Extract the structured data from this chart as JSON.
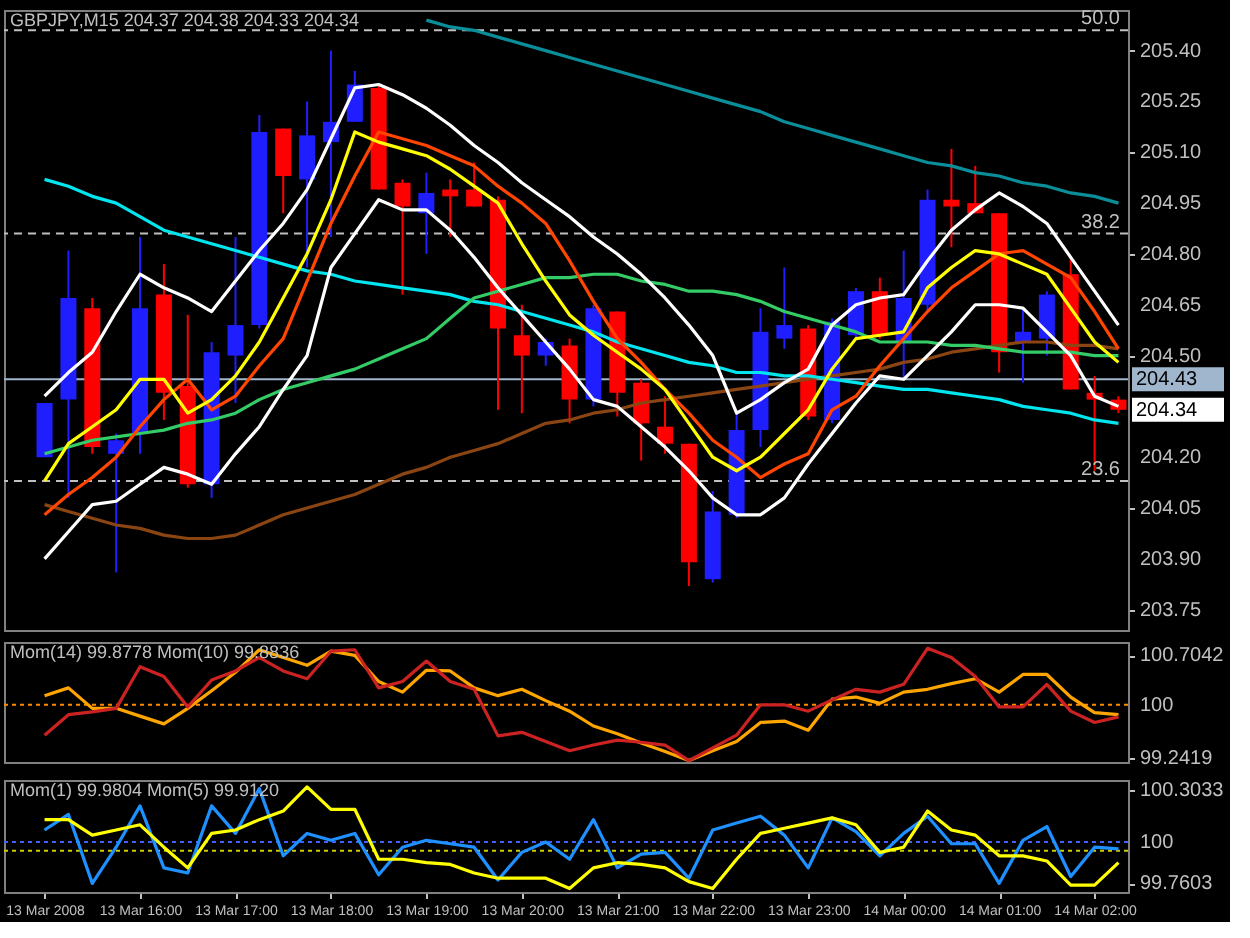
{
  "chart_data": [
    {
      "type": "candlestick",
      "title": "GBPJPY,M15  204.37 204.38 204.33 204.34",
      "categories": [
        null,
        null,
        null,
        null,
        null,
        null,
        null,
        null,
        null,
        null,
        null,
        null,
        null,
        null,
        null,
        null,
        null,
        null,
        null,
        null,
        null,
        null,
        null,
        null,
        null,
        null,
        null,
        null,
        null,
        null,
        null,
        null,
        null,
        null,
        null,
        null,
        null,
        null,
        null,
        null,
        null,
        null,
        null,
        null,
        null,
        null
      ],
      "ohlc": [
        [
          204.2,
          204.36,
          204.2,
          204.36
        ],
        [
          204.37,
          204.81,
          204.08,
          204.67
        ],
        [
          204.64,
          204.67,
          204.21,
          204.23
        ],
        [
          204.21,
          204.27,
          203.86,
          204.25
        ],
        [
          204.27,
          204.85,
          204.21,
          204.64
        ],
        [
          204.68,
          204.77,
          204.31,
          204.39
        ],
        [
          204.41,
          204.62,
          204.11,
          204.12
        ],
        [
          204.12,
          204.54,
          204.08,
          204.51
        ],
        [
          204.5,
          204.85,
          204.36,
          204.59
        ],
        [
          204.59,
          205.21,
          204.58,
          205.16
        ],
        [
          205.17,
          205.17,
          204.92,
          205.03
        ],
        [
          205.02,
          205.25,
          204.76,
          205.15
        ],
        [
          205.13,
          205.4,
          204.85,
          205.19
        ],
        [
          205.19,
          205.34,
          205.19,
          205.3
        ],
        [
          205.29,
          205.3,
          204.99,
          204.99
        ],
        [
          205.01,
          205.02,
          204.68,
          204.94
        ],
        [
          204.92,
          205.04,
          204.8,
          204.98
        ],
        [
          204.99,
          205.02,
          204.85,
          204.97
        ],
        [
          204.99,
          205.07,
          204.94,
          204.94
        ],
        [
          204.96,
          204.97,
          204.34,
          204.58
        ],
        [
          204.56,
          204.65,
          204.33,
          204.5
        ],
        [
          204.5,
          204.55,
          204.47,
          204.54
        ],
        [
          204.53,
          204.55,
          204.3,
          204.37
        ],
        [
          204.37,
          204.65,
          204.35,
          204.64
        ],
        [
          204.63,
          204.63,
          204.32,
          204.39
        ],
        [
          204.42,
          204.43,
          204.19,
          204.3
        ],
        [
          204.29,
          204.38,
          204.21,
          204.24
        ],
        [
          204.24,
          204.24,
          203.82,
          203.89
        ],
        [
          203.84,
          204.1,
          203.83,
          204.04
        ],
        [
          204.03,
          204.34,
          204.02,
          204.28
        ],
        [
          204.28,
          204.64,
          204.23,
          204.57
        ],
        [
          204.55,
          204.76,
          204.52,
          204.59
        ],
        [
          204.58,
          204.59,
          204.31,
          204.32
        ],
        [
          204.31,
          204.61,
          204.3,
          204.6
        ],
        [
          204.56,
          204.7,
          204.55,
          204.69
        ],
        [
          204.69,
          204.73,
          204.55,
          204.56
        ],
        [
          204.54,
          204.81,
          204.43,
          204.67
        ],
        [
          204.65,
          204.99,
          204.63,
          204.96
        ],
        [
          204.96,
          205.11,
          204.82,
          204.94
        ],
        [
          204.95,
          205.06,
          204.92,
          204.92
        ],
        [
          204.92,
          204.92,
          204.45,
          204.51
        ],
        [
          204.54,
          204.64,
          204.42,
          204.57
        ],
        [
          204.55,
          204.69,
          204.5,
          204.68
        ],
        [
          204.74,
          204.79,
          204.4,
          204.4
        ],
        [
          204.39,
          204.44,
          204.16,
          204.37
        ],
        [
          204.37,
          204.38,
          204.33,
          204.34
        ]
      ],
      "colors": [
        "#1e1eff",
        "#1e1eff",
        "#ff0000",
        "#1e1eff",
        "#1e1eff",
        "#ff0000",
        "#ff0000",
        "#1e1eff",
        "#1e1eff",
        "#1e1eff",
        "#ff0000",
        "#1e1eff",
        "#1e1eff",
        "#1e1eff",
        "#ff0000",
        "#ff0000",
        "#1e1eff",
        "#ff0000",
        "#ff0000",
        "#ff0000",
        "#ff0000",
        "#1e1eff",
        "#ff0000",
        "#1e1eff",
        "#ff0000",
        "#ff0000",
        "#ff0000",
        "#ff0000",
        "#1e1eff",
        "#1e1eff",
        "#1e1eff",
        "#1e1eff",
        "#ff0000",
        "#1e1eff",
        "#1e1eff",
        "#ff0000",
        "#1e1eff",
        "#1e1eff",
        "#ff0000",
        "#ff0000",
        "#ff0000",
        "#1e1eff",
        "#1e1eff",
        "#ff0000",
        "#ff0000",
        "#ff0000"
      ],
      "series": [
        {
          "type": "line",
          "color": "#0a8f9a",
          "values": [
            null,
            null,
            null,
            null,
            null,
            null,
            null,
            null,
            null,
            null,
            null,
            null,
            null,
            null,
            null,
            null,
            205.49,
            205.47,
            205.46,
            205.44,
            205.42,
            205.4,
            205.38,
            205.36,
            205.34,
            205.32,
            205.3,
            205.28,
            205.26,
            205.24,
            205.22,
            205.19,
            205.17,
            205.15,
            205.13,
            205.11,
            205.09,
            205.07,
            205.06,
            205.04,
            205.03,
            205.01,
            205.0,
            204.98,
            204.97,
            204.95
          ]
        },
        {
          "type": "line",
          "color": "#8b4513",
          "values": [
            204.06,
            204.04,
            204.02,
            204.0,
            203.99,
            203.97,
            203.96,
            203.96,
            203.97,
            204.0,
            204.03,
            204.05,
            204.07,
            204.09,
            204.12,
            204.15,
            204.17,
            204.2,
            204.22,
            204.24,
            204.27,
            204.3,
            204.31,
            204.33,
            204.34,
            204.36,
            204.37,
            204.38,
            204.39,
            204.4,
            204.41,
            204.42,
            204.43,
            204.44,
            204.45,
            204.46,
            204.48,
            204.49,
            204.51,
            204.52,
            204.53,
            204.54,
            204.54,
            204.53,
            204.53,
            204.52
          ]
        },
        {
          "type": "line",
          "color": "#00e5ee",
          "values": [
            205.02,
            205.0,
            204.97,
            204.95,
            204.91,
            204.87,
            204.85,
            204.83,
            204.81,
            204.79,
            204.77,
            204.75,
            204.74,
            204.72,
            204.71,
            204.7,
            204.69,
            204.68,
            204.66,
            204.65,
            204.63,
            204.61,
            204.59,
            204.57,
            204.54,
            204.52,
            204.5,
            204.48,
            204.47,
            204.45,
            204.45,
            204.44,
            204.44,
            204.43,
            204.42,
            204.41,
            204.4,
            204.4,
            204.39,
            204.38,
            204.37,
            204.35,
            204.34,
            204.33,
            204.31,
            204.3
          ]
        },
        {
          "type": "line",
          "color": "#33cc66",
          "values": [
            204.21,
            204.23,
            204.25,
            204.26,
            204.27,
            204.28,
            204.3,
            204.31,
            204.33,
            204.37,
            204.4,
            204.42,
            204.44,
            204.46,
            204.49,
            204.52,
            204.55,
            204.61,
            204.67,
            204.69,
            204.71,
            204.73,
            204.73,
            204.74,
            204.74,
            204.72,
            204.71,
            204.69,
            204.69,
            204.68,
            204.66,
            204.63,
            204.61,
            204.59,
            204.57,
            204.54,
            204.54,
            204.54,
            204.53,
            204.53,
            204.52,
            204.51,
            204.51,
            204.51,
            204.5,
            204.5
          ]
        },
        {
          "type": "line",
          "color": "#ffffff",
          "values": [
            204.38,
            204.45,
            204.51,
            204.63,
            204.74,
            204.7,
            204.67,
            204.63,
            204.72,
            204.81,
            204.89,
            204.99,
            205.14,
            205.29,
            205.3,
            205.27,
            205.23,
            205.18,
            205.12,
            205.07,
            205.01,
            204.96,
            204.91,
            204.85,
            204.8,
            204.74,
            204.67,
            204.59,
            204.5,
            204.33,
            204.37,
            204.42,
            204.46,
            204.59,
            204.65,
            204.67,
            204.68,
            204.78,
            204.87,
            204.93,
            204.98,
            204.94,
            204.89,
            204.79,
            204.69,
            204.59
          ]
        },
        {
          "type": "line",
          "color": "#ffffff",
          "values": [
            203.9,
            203.98,
            204.06,
            204.07,
            204.12,
            204.17,
            204.15,
            204.12,
            204.21,
            204.29,
            204.4,
            204.5,
            204.76,
            204.86,
            204.96,
            204.93,
            204.93,
            204.87,
            204.79,
            204.7,
            204.62,
            204.54,
            204.46,
            204.37,
            204.35,
            204.29,
            204.23,
            204.16,
            204.08,
            204.03,
            204.03,
            204.08,
            204.18,
            204.27,
            204.36,
            204.44,
            204.43,
            204.5,
            204.57,
            204.65,
            204.65,
            204.64,
            204.57,
            204.5,
            204.38,
            204.35
          ]
        },
        {
          "type": "line",
          "color": "#ff4500",
          "values": [
            204.03,
            204.09,
            204.14,
            204.2,
            204.29,
            204.37,
            204.43,
            204.34,
            204.38,
            204.47,
            204.55,
            204.72,
            204.89,
            205.03,
            205.16,
            205.14,
            205.12,
            205.09,
            205.06,
            205.0,
            204.95,
            204.89,
            204.78,
            204.66,
            204.55,
            204.48,
            204.4,
            204.33,
            204.25,
            204.2,
            204.14,
            204.18,
            204.21,
            204.34,
            204.38,
            204.47,
            204.55,
            204.63,
            204.7,
            204.75,
            204.8,
            204.81,
            204.77,
            204.73,
            204.63,
            204.52
          ]
        },
        {
          "type": "line",
          "color": "#ffff00",
          "values": [
            204.13,
            204.24,
            204.29,
            204.34,
            204.43,
            204.43,
            204.33,
            204.37,
            204.44,
            204.54,
            204.67,
            204.8,
            204.96,
            205.16,
            205.13,
            205.11,
            205.09,
            205.05,
            205.0,
            204.95,
            204.83,
            204.72,
            204.62,
            204.56,
            204.51,
            204.46,
            204.4,
            204.3,
            204.2,
            204.16,
            204.2,
            204.27,
            204.34,
            204.46,
            204.55,
            204.56,
            204.57,
            204.7,
            204.76,
            204.81,
            204.8,
            204.77,
            204.74,
            204.64,
            204.54,
            204.48
          ]
        }
      ],
      "ref_lines": [
        {
          "axis": "y",
          "value": 205.46,
          "color": "#c0c0c0",
          "line_style": "dashed"
        },
        {
          "axis": "y",
          "value": 204.86,
          "color": "#c0c0c0",
          "line_style": "dashed"
        },
        {
          "axis": "y",
          "value": 204.13,
          "color": "#c0c0c0",
          "line_style": "dashed"
        },
        {
          "axis": "y",
          "value": 204.43,
          "label": "204.43",
          "color": "#9fb6cd",
          "line_style": "solid"
        }
      ],
      "annotations": [
        "204.34",
        "50.0",
        "38.2",
        "23.6"
      ],
      "ylim": [
        203.69,
        205.52
      ],
      "yticks": [
        {
          "value": 205.4,
          "label": "205.40"
        },
        {
          "value": 205.25,
          "label": "205.25"
        },
        {
          "value": 205.1,
          "label": "205.10"
        },
        {
          "value": 204.95,
          "label": "204.95"
        },
        {
          "value": 204.8,
          "label": "204.80"
        },
        {
          "value": 204.65,
          "label": "204.65"
        },
        {
          "value": 204.5,
          "label": "204.50"
        },
        {
          "value": 204.2,
          "label": "204.20"
        },
        {
          "value": 204.05,
          "label": "204.05"
        },
        {
          "value": 203.9,
          "label": "203.90"
        },
        {
          "value": 203.75,
          "label": "203.75"
        }
      ],
      "tick_labels": "y"
    },
    {
      "type": "line",
      "title": "Mom(14) 99.8778  Mom(10) 99.8836",
      "categories": [
        null,
        null,
        null,
        null,
        null,
        null,
        null,
        null,
        null,
        null,
        null,
        null,
        null,
        null,
        null,
        null,
        null,
        null,
        null,
        null,
        null,
        null,
        null,
        null,
        null,
        null,
        null,
        null,
        null,
        null,
        null,
        null,
        null,
        null,
        null,
        null,
        null,
        null,
        null,
        null,
        null,
        null,
        null,
        null,
        null,
        null
      ],
      "series": [
        {
          "color": "#ffa500",
          "values": [
            100.13,
            100.24,
            99.95,
            99.95,
            99.84,
            99.73,
            99.95,
            100.2,
            100.46,
            100.78,
            100.67,
            100.56,
            100.76,
            100.7,
            100.33,
            100.18,
            100.49,
            100.48,
            100.24,
            100.13,
            100.22,
            100.06,
            99.91,
            99.7,
            99.59,
            99.46,
            99.34,
            99.21,
            99.35,
            99.48,
            99.75,
            99.77,
            99.64,
            100.08,
            100.11,
            100.02,
            100.18,
            100.22,
            100.3,
            100.37,
            100.18,
            100.43,
            100.43,
            100.11,
            99.89,
            99.86
          ]
        },
        {
          "color": "#cc2222",
          "values": [
            99.57,
            99.86,
            99.9,
            99.95,
            100.54,
            100.4,
            99.97,
            100.35,
            100.48,
            100.67,
            100.48,
            100.37,
            100.76,
            100.78,
            100.24,
            100.33,
            100.62,
            100.33,
            100.22,
            99.56,
            99.61,
            99.48,
            99.35,
            99.43,
            99.5,
            99.47,
            99.43,
            99.21,
            99.39,
            99.57,
            100.0,
            100.0,
            99.91,
            100.07,
            100.22,
            100.18,
            100.29,
            100.8,
            100.67,
            100.4,
            99.97,
            99.97,
            100.29,
            99.91,
            99.75,
            99.83
          ]
        }
      ],
      "ref_lines": [
        {
          "axis": "y",
          "value": 100,
          "color": "#ff8c00",
          "line_style": "dotted"
        }
      ],
      "ylim": [
        99.19,
        100.89
      ],
      "yticks": [
        100.7042,
        100,
        99.2419
      ],
      "tick_labels": "y"
    },
    {
      "type": "line",
      "title": "Mom(1) 99.9804  Mom(5) 99.9120",
      "categories": [
        "13 Mar 2008",
        null,
        null,
        null,
        "13 Mar 16:00",
        null,
        null,
        null,
        "13 Mar 17:00",
        null,
        null,
        null,
        "13 Mar 18:00",
        null,
        null,
        null,
        "13 Mar 19:00",
        null,
        null,
        null,
        "13 Mar 20:00",
        null,
        null,
        null,
        "13 Mar 21:00",
        null,
        null,
        null,
        "13 Mar 22:00",
        null,
        null,
        null,
        "13 Mar 23:00",
        null,
        null,
        null,
        "14 Mar 00:00",
        null,
        null,
        null,
        "14 Mar 01:00",
        null,
        null,
        null,
        "14 Mar 02:00",
        null
      ],
      "series": [
        {
          "color": "#1e90ff",
          "values": [
            100.07,
            100.16,
            99.76,
            99.97,
            100.21,
            99.85,
            99.82,
            100.21,
            100.05,
            100.31,
            99.92,
            100.05,
            100.01,
            100.05,
            99.81,
            99.97,
            100.01,
            99.99,
            99.97,
            99.78,
            99.94,
            100.0,
            99.9,
            100.13,
            99.85,
            99.93,
            99.94,
            99.79,
            100.07,
            100.11,
            100.15,
            100.04,
            99.85,
            100.14,
            100.06,
            99.92,
            100.05,
            100.15,
            99.99,
            99.99,
            99.76,
            100.01,
            100.09,
            99.8,
            99.97,
            99.96
          ]
        },
        {
          "color": "#ffff00",
          "values": [
            100.13,
            100.13,
            100.04,
            100.07,
            100.1,
            99.97,
            99.85,
            100.05,
            100.07,
            100.13,
            100.18,
            100.32,
            100.19,
            100.19,
            99.9,
            99.9,
            99.88,
            99.87,
            99.82,
            99.79,
            99.79,
            99.79,
            99.73,
            99.85,
            99.88,
            99.87,
            99.85,
            99.77,
            99.73,
            99.9,
            100.05,
            100.08,
            100.11,
            100.14,
            100.1,
            99.94,
            99.97,
            100.18,
            100.07,
            100.04,
            99.92,
            99.92,
            99.89,
            99.75,
            99.75,
            99.88
          ]
        }
      ],
      "ref_lines": [
        {
          "axis": "y",
          "value": 100,
          "color": "#4060ff",
          "line_style": "dotted"
        },
        {
          "axis": "y",
          "value": 99.95,
          "color": "#cccc00",
          "line_style": "dotted"
        }
      ],
      "ylim": [
        99.71,
        100.36
      ],
      "yticks": [
        100.3033,
        100,
        99.7603
      ]
    }
  ]
}
